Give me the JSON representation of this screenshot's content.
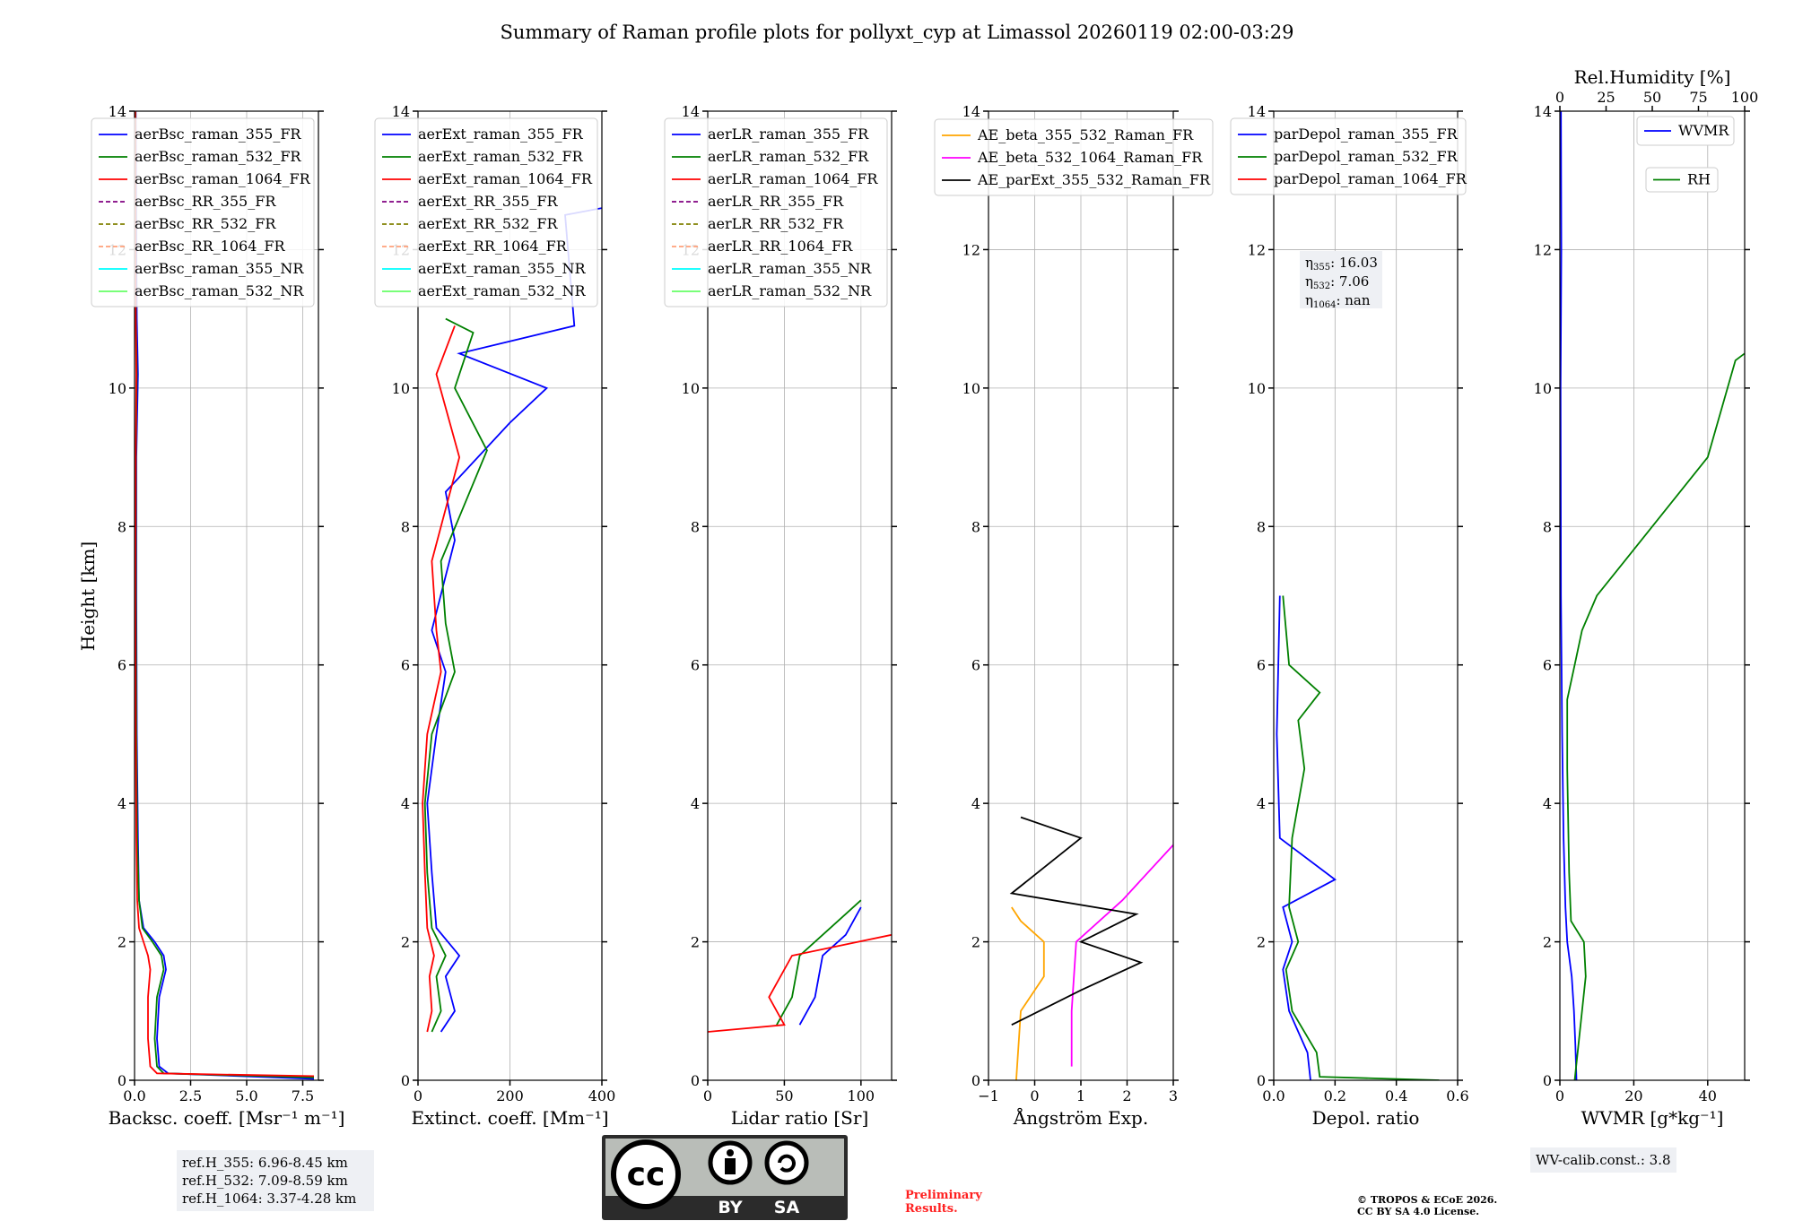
{
  "title": "Summary of Raman profile plots for pollyxt_cyp at Limassol 20260119 02:00-03:29",
  "chart_data": [
    {
      "type": "line",
      "name": "backscatter",
      "xlabel": "Backsc. coeff. [Msr⁻¹ m⁻¹]",
      "ylabel": "Height [km]",
      "xlim": [
        0,
        8.2
      ],
      "ylim": [
        0,
        14
      ],
      "xticks": [
        0,
        2.5,
        5,
        7.5
      ],
      "xticklabels": [
        "0.0",
        "2.5",
        "5.0",
        "7.5"
      ],
      "yticks": [
        0,
        2,
        4,
        6,
        8,
        10,
        12,
        14
      ],
      "legend": [
        "aerBsc_raman_355_FR",
        "aerBsc_raman_532_FR",
        "aerBsc_raman_1064_FR",
        "aerBsc_RR_355_FR",
        "aerBsc_RR_532_FR",
        "aerBsc_RR_1064_FR",
        "aerBsc_raman_355_NR",
        "aerBsc_raman_532_NR"
      ],
      "series": [
        {
          "name": "aerBsc_raman_355_FR",
          "color": "#0000ff",
          "points": [
            [
              8.0,
              0.02
            ],
            [
              1.5,
              0.1
            ],
            [
              1.1,
              0.2
            ],
            [
              1.0,
              0.6
            ],
            [
              1.1,
              1.2
            ],
            [
              1.4,
              1.6
            ],
            [
              1.3,
              1.8
            ],
            [
              0.9,
              2.0
            ],
            [
              0.4,
              2.2
            ],
            [
              0.2,
              2.6
            ],
            [
              0.15,
              3.5
            ],
            [
              0.1,
              5.0
            ],
            [
              0.08,
              7
            ],
            [
              0.08,
              9
            ],
            [
              0.15,
              10.2
            ],
            [
              0.1,
              11
            ],
            [
              0.08,
              12
            ],
            [
              0.05,
              14
            ]
          ]
        },
        {
          "name": "aerBsc_raman_532_FR",
          "color": "#008000",
          "points": [
            [
              8.0,
              0.04
            ],
            [
              1.3,
              0.1
            ],
            [
              1.0,
              0.2
            ],
            [
              0.9,
              0.6
            ],
            [
              1.0,
              1.2
            ],
            [
              1.3,
              1.6
            ],
            [
              1.2,
              1.8
            ],
            [
              0.8,
              2.0
            ],
            [
              0.35,
              2.2
            ],
            [
              0.2,
              2.6
            ],
            [
              0.12,
              3.5
            ],
            [
              0.08,
              5.0
            ],
            [
              0.06,
              7
            ],
            [
              0.06,
              9
            ],
            [
              0.1,
              10.2
            ],
            [
              0.06,
              11
            ],
            [
              0.05,
              12
            ],
            [
              0.04,
              14
            ]
          ]
        },
        {
          "name": "aerBsc_raman_1064_FR",
          "color": "#ff0000",
          "points": [
            [
              8.0,
              0.06
            ],
            [
              1.0,
              0.1
            ],
            [
              0.7,
              0.2
            ],
            [
              0.6,
              0.6
            ],
            [
              0.6,
              1.2
            ],
            [
              0.7,
              1.6
            ],
            [
              0.6,
              1.8
            ],
            [
              0.4,
              2.0
            ],
            [
              0.2,
              2.2
            ],
            [
              0.12,
              2.6
            ],
            [
              0.08,
              3.5
            ],
            [
              0.05,
              5.0
            ],
            [
              0.04,
              7
            ],
            [
              0.05,
              9
            ],
            [
              0.08,
              10.2
            ],
            [
              0.05,
              11
            ],
            [
              0.04,
              12
            ],
            [
              0.03,
              14
            ]
          ]
        }
      ]
    },
    {
      "type": "line",
      "name": "extinction",
      "xlabel": "Extinct. coeff. [Mm⁻¹]",
      "xlim": [
        0,
        400
      ],
      "ylim": [
        0,
        14
      ],
      "xticks": [
        0,
        200,
        400
      ],
      "xticklabels": [
        "0",
        "200",
        "400"
      ],
      "yticks": [
        0,
        2,
        4,
        6,
        8,
        10,
        12,
        14
      ],
      "legend": [
        "aerExt_raman_355_FR",
        "aerExt_raman_532_FR",
        "aerExt_raman_1064_FR",
        "aerExt_RR_355_FR",
        "aerExt_RR_532_FR",
        "aerExt_RR_1064_FR",
        "aerExt_raman_355_NR",
        "aerExt_raman_532_NR"
      ],
      "series": [
        {
          "name": "aerExt_raman_355_FR",
          "color": "#0000ff",
          "points": [
            [
              50,
              0.7
            ],
            [
              80,
              1.0
            ],
            [
              60,
              1.5
            ],
            [
              90,
              1.8
            ],
            [
              40,
              2.2
            ],
            [
              30,
              3
            ],
            [
              20,
              4
            ],
            [
              40,
              5
            ],
            [
              60,
              5.9
            ],
            [
              30,
              6.5
            ],
            [
              80,
              7.8
            ],
            [
              60,
              8.5
            ],
            [
              200,
              9.5
            ],
            [
              280,
              10.0
            ],
            [
              90,
              10.5
            ],
            [
              340,
              10.9
            ],
            [
              320,
              12.5
            ],
            [
              400,
              12.6
            ]
          ]
        },
        {
          "name": "aerExt_raman_532_FR",
          "color": "#008000",
          "points": [
            [
              30,
              0.7
            ],
            [
              50,
              1.0
            ],
            [
              40,
              1.5
            ],
            [
              60,
              1.8
            ],
            [
              30,
              2.2
            ],
            [
              20,
              3
            ],
            [
              15,
              4
            ],
            [
              30,
              5
            ],
            [
              80,
              5.9
            ],
            [
              60,
              6.6
            ],
            [
              50,
              7.5
            ],
            [
              150,
              9.1
            ],
            [
              80,
              10
            ],
            [
              120,
              10.8
            ],
            [
              60,
              11
            ]
          ]
        },
        {
          "name": "aerExt_raman_1064_FR",
          "color": "#ff0000",
          "points": [
            [
              20,
              0.7
            ],
            [
              30,
              1.0
            ],
            [
              25,
              1.5
            ],
            [
              35,
              1.8
            ],
            [
              20,
              2.2
            ],
            [
              15,
              3
            ],
            [
              10,
              4
            ],
            [
              20,
              5
            ],
            [
              50,
              5.9
            ],
            [
              40,
              6.5
            ],
            [
              30,
              7.5
            ],
            [
              90,
              9.0
            ],
            [
              40,
              10.2
            ],
            [
              80,
              10.9
            ]
          ]
        }
      ]
    },
    {
      "type": "line",
      "name": "lidar_ratio",
      "xlabel": "Lidar ratio [Sr]",
      "xlim": [
        0,
        120
      ],
      "ylim": [
        0,
        14
      ],
      "xticks": [
        0,
        50,
        100
      ],
      "xticklabels": [
        "0",
        "50",
        "100"
      ],
      "yticks": [
        0,
        2,
        4,
        6,
        8,
        10,
        12,
        14
      ],
      "legend": [
        "aerLR_raman_355_FR",
        "aerLR_raman_532_FR",
        "aerLR_raman_1064_FR",
        "aerLR_RR_355_FR",
        "aerLR_RR_532_FR",
        "aerLR_RR_1064_FR",
        "aerLR_raman_355_NR",
        "aerLR_raman_532_NR"
      ],
      "series": [
        {
          "name": "aerLR_raman_355_FR",
          "color": "#0000ff",
          "points": [
            [
              60,
              0.8
            ],
            [
              70,
              1.2
            ],
            [
              75,
              1.8
            ],
            [
              90,
              2.1
            ],
            [
              100,
              2.5
            ]
          ]
        },
        {
          "name": "aerLR_raman_532_FR",
          "color": "#008000",
          "points": [
            [
              45,
              0.8
            ],
            [
              55,
              1.2
            ],
            [
              60,
              1.8
            ],
            [
              80,
              2.2
            ],
            [
              100,
              2.6
            ]
          ]
        },
        {
          "name": "aerLR_raman_1064_FR",
          "color": "#ff0000",
          "points": [
            [
              0,
              0.7
            ],
            [
              50,
              0.8
            ],
            [
              40,
              1.2
            ],
            [
              55,
              1.8
            ],
            [
              120,
              2.1
            ]
          ]
        }
      ]
    },
    {
      "type": "line",
      "name": "angstrom",
      "xlabel": "Ångström Exp.",
      "xlim": [
        -1,
        3
      ],
      "ylim": [
        0,
        14
      ],
      "xticks": [
        -1,
        0,
        1,
        2,
        3
      ],
      "xticklabels": [
        "−1",
        "0",
        "1",
        "2",
        "3"
      ],
      "yticks": [
        0,
        2,
        4,
        6,
        8,
        10,
        12,
        14
      ],
      "legend": [
        "AE_beta_355_532_Raman_FR",
        "AE_beta_532_1064_Raman_FR",
        "AE_parExt_355_532_Raman_FR"
      ],
      "series": [
        {
          "name": "AE_beta_355_532_Raman_FR",
          "color": "#ffa500",
          "points": [
            [
              -0.4,
              0
            ],
            [
              -0.3,
              1.0
            ],
            [
              0.2,
              1.5
            ],
            [
              0.2,
              2.0
            ],
            [
              -0.3,
              2.3
            ],
            [
              -0.5,
              2.5
            ]
          ]
        },
        {
          "name": "AE_beta_532_1064_Raman_FR",
          "color": "#ff00ff",
          "points": [
            [
              0.8,
              0.2
            ],
            [
              0.8,
              1.0
            ],
            [
              0.9,
              2.0
            ],
            [
              1.9,
              2.6
            ],
            [
              3.0,
              3.4
            ]
          ]
        },
        {
          "name": "AE_parExt_355_532_Raman_FR",
          "color": "#000000",
          "points": [
            [
              -0.5,
              0.8
            ],
            [
              1.0,
              1.3
            ],
            [
              2.3,
              1.7
            ],
            [
              1.0,
              2.0
            ],
            [
              2.2,
              2.4
            ],
            [
              -0.5,
              2.7
            ],
            [
              1.0,
              3.5
            ],
            [
              -0.3,
              3.8
            ]
          ]
        }
      ]
    },
    {
      "type": "line",
      "name": "depolarization",
      "xlabel": "Depol. ratio",
      "xlim": [
        0,
        0.6
      ],
      "ylim": [
        0,
        14
      ],
      "xticks": [
        0,
        0.2,
        0.4,
        0.6
      ],
      "xticklabels": [
        "0.0",
        "0.2",
        "0.4",
        "0.6"
      ],
      "yticks": [
        0,
        2,
        4,
        6,
        8,
        10,
        12,
        14
      ],
      "legend": [
        "parDepol_raman_355_FR",
        "parDepol_raman_532_FR",
        "parDepol_raman_1064_FR"
      ],
      "annotations": {
        "eta355": "16.03",
        "eta532": "7.06",
        "eta1064": "nan"
      },
      "series": [
        {
          "name": "parDepol_raman_355_FR",
          "color": "#0000ff",
          "points": [
            [
              0.12,
              0
            ],
            [
              0.11,
              0.4
            ],
            [
              0.05,
              1.0
            ],
            [
              0.03,
              1.6
            ],
            [
              0.06,
              2.0
            ],
            [
              0.03,
              2.5
            ],
            [
              0.2,
              2.9
            ],
            [
              0.02,
              3.5
            ],
            [
              0.01,
              5
            ],
            [
              0.02,
              7
            ]
          ]
        },
        {
          "name": "parDepol_raman_532_FR",
          "color": "#008000",
          "points": [
            [
              0.54,
              0
            ],
            [
              0.15,
              0.05
            ],
            [
              0.14,
              0.4
            ],
            [
              0.06,
              1.0
            ],
            [
              0.04,
              1.6
            ],
            [
              0.08,
              2.0
            ],
            [
              0.05,
              2.5
            ],
            [
              0.06,
              3.5
            ],
            [
              0.1,
              4.5
            ],
            [
              0.08,
              5.2
            ],
            [
              0.15,
              5.6
            ],
            [
              0.05,
              6.0
            ],
            [
              0.03,
              7
            ]
          ]
        }
      ]
    },
    {
      "type": "line",
      "name": "water_vapor",
      "xlabel": "WVMR [g*kg⁻¹]",
      "x2label": "Rel.Humidity [%]",
      "xlim": [
        0,
        50
      ],
      "ylim": [
        0,
        14
      ],
      "xticks": [
        0,
        20,
        40
      ],
      "xticklabels": [
        "0",
        "20",
        "40"
      ],
      "x2lim": [
        0,
        100
      ],
      "x2ticks": [
        0,
        25,
        50,
        75,
        100
      ],
      "x2ticklabels": [
        "0",
        "25",
        "50",
        "75",
        "100"
      ],
      "yticks": [
        0,
        2,
        4,
        6,
        8,
        10,
        12,
        14
      ],
      "legend": [
        "WVMR",
        "RH"
      ],
      "series": [
        {
          "name": "WVMR",
          "color": "#0000ff",
          "points": [
            [
              4.5,
              0
            ],
            [
              4.2,
              0.5
            ],
            [
              3.8,
              1.0
            ],
            [
              3.2,
              1.5
            ],
            [
              2.0,
              2.0
            ],
            [
              1.5,
              2.5
            ],
            [
              1.0,
              3.5
            ],
            [
              0.6,
              5
            ],
            [
              0.3,
              7
            ],
            [
              0.2,
              10
            ],
            [
              0.4,
              12
            ],
            [
              0.3,
              14
            ]
          ]
        },
        {
          "name": "RH",
          "color": "#008000",
          "axis": "x2",
          "points": [
            [
              8,
              0
            ],
            [
              10,
              0.5
            ],
            [
              12,
              1.0
            ],
            [
              14,
              1.5
            ],
            [
              13,
              2.0
            ],
            [
              6,
              2.3
            ],
            [
              5,
              3
            ],
            [
              4,
              4.5
            ],
            [
              4,
              5.5
            ],
            [
              8,
              6.0
            ],
            [
              12,
              6.5
            ],
            [
              20,
              7.0
            ],
            [
              35,
              7.5
            ],
            [
              50,
              8.0
            ],
            [
              65,
              8.5
            ],
            [
              80,
              9.0
            ],
            [
              95,
              10.4
            ],
            [
              100,
              10.5
            ]
          ]
        }
      ]
    }
  ],
  "footer": {
    "ref_355": "ref.H_355: 6.96-8.45 km",
    "ref_532": "ref.H_532: 7.09-8.59 km",
    "ref_1064": "ref.H_1064: 3.37-4.28 km",
    "wv_calib": "WV-calib.const.: 3.8",
    "prelim_1": "Preliminary",
    "prelim_2": "Results.",
    "copyright_1": "© TROPOS & ECoE 2026.",
    "copyright_2": "CC BY SA 4.0 License.",
    "cc_by": "BY",
    "cc_sa": "SA",
    "cc_text": "cc"
  }
}
